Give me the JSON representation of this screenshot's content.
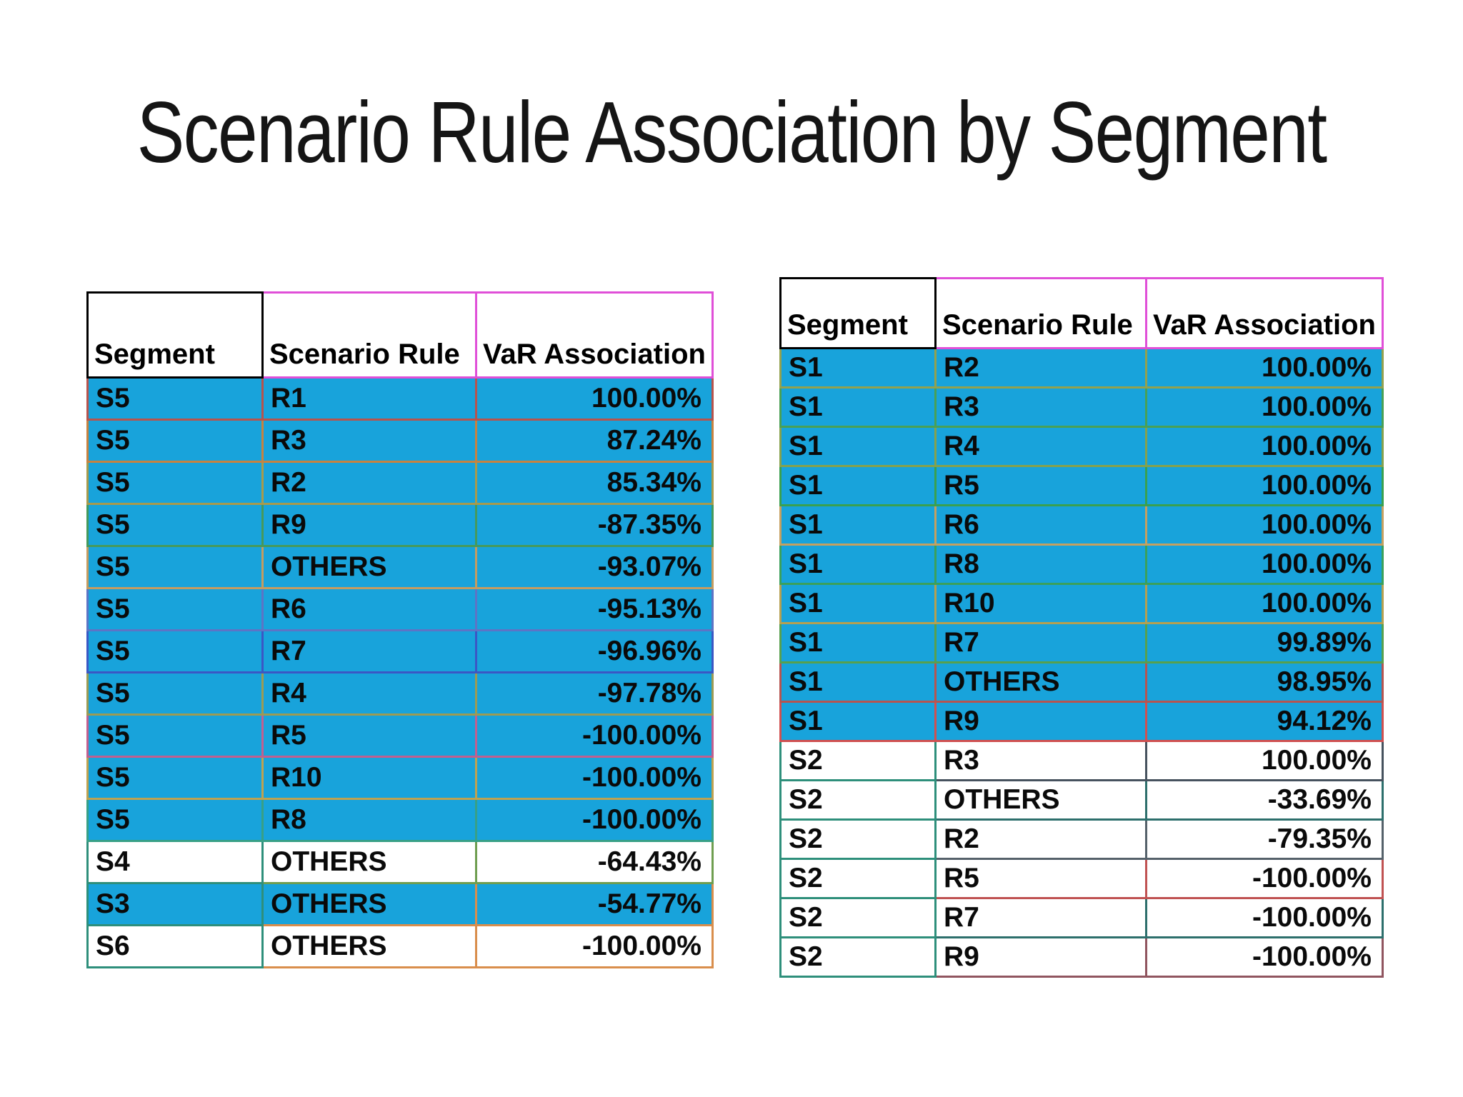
{
  "title": "Scenario Rule Association by Segment",
  "colors": {
    "highlight_fill": "#18A3DB",
    "row_fill": "#FFFFFF",
    "header_border_first": "#000000",
    "header_border_rest": "#E04FD8",
    "segment_alt_border": "#2E8F7B",
    "text": "#111111"
  },
  "tables": [
    {
      "name": "scenario-rule-table-left",
      "columns": [
        "Segment",
        "Scenario Rule",
        "VaR Association"
      ],
      "rows": [
        {
          "segment": "S5",
          "rule": "R1",
          "value": "100.00%",
          "highlight": true,
          "bc": "#B8534C"
        },
        {
          "segment": "S5",
          "rule": "R3",
          "value": "87.24%",
          "highlight": true,
          "bc": "#C8823F"
        },
        {
          "segment": "S5",
          "rule": "R2",
          "value": "85.34%",
          "highlight": true,
          "bc": "#A89A4C"
        },
        {
          "segment": "S5",
          "rule": "R9",
          "value": "-87.35%",
          "highlight": true,
          "bc": "#46995B"
        },
        {
          "segment": "S5",
          "rule": "OTHERS",
          "value": "-93.07%",
          "highlight": true,
          "bc": "#C59C60"
        },
        {
          "segment": "S5",
          "rule": "R6",
          "value": "-95.13%",
          "highlight": true,
          "bc": "#5D74C5"
        },
        {
          "segment": "S5",
          "rule": "R7",
          "value": "-96.96%",
          "highlight": true,
          "bc": "#3B57C4"
        },
        {
          "segment": "S5",
          "rule": "R4",
          "value": "-97.78%",
          "highlight": true,
          "bc": "#9C9B54"
        },
        {
          "segment": "S5",
          "rule": "R5",
          "value": "-100.00%",
          "highlight": true,
          "bc": "#C25F8F"
        },
        {
          "segment": "S5",
          "rule": "R10",
          "value": "-100.00%",
          "highlight": true,
          "bc": "#BFA250"
        },
        {
          "segment": "S5",
          "rule": "R8",
          "value": "-100.00%",
          "highlight": true,
          "bc": "#38A086"
        },
        {
          "segment": "S4",
          "rule": "OTHERS",
          "value": "-64.43%",
          "highlight": false,
          "bc": "#6F9E50",
          "bc0": "#2E8F7B"
        },
        {
          "segment": "S3",
          "rule": "OTHERS",
          "value": "-54.77%",
          "highlight": true,
          "bc": "#D98E4C",
          "bc0": "#2E8F7B"
        },
        {
          "segment": "S6",
          "rule": "OTHERS",
          "value": "-100.00%",
          "highlight": false,
          "bc": "#D98E4C",
          "bc0": "#2E8F7B"
        }
      ]
    },
    {
      "name": "scenario-rule-table-right",
      "columns": [
        "Segment",
        "Scenario Rule",
        "VaR Association"
      ],
      "rows": [
        {
          "segment": "S1",
          "rule": "R2",
          "value": "100.00%",
          "highlight": true,
          "bc": "#93A14E"
        },
        {
          "segment": "S1",
          "rule": "R3",
          "value": "100.00%",
          "highlight": true,
          "bc": "#49A055"
        },
        {
          "segment": "S1",
          "rule": "R4",
          "value": "100.00%",
          "highlight": true,
          "bc": "#85A14D"
        },
        {
          "segment": "S1",
          "rule": "R5",
          "value": "100.00%",
          "highlight": true,
          "bc": "#3AA04F"
        },
        {
          "segment": "S1",
          "rule": "R6",
          "value": "100.00%",
          "highlight": true,
          "bc": "#C5A060"
        },
        {
          "segment": "S1",
          "rule": "R8",
          "value": "100.00%",
          "highlight": true,
          "bc": "#3BA05B"
        },
        {
          "segment": "S1",
          "rule": "R10",
          "value": "100.00%",
          "highlight": true,
          "bc": "#B5A050"
        },
        {
          "segment": "S1",
          "rule": "R7",
          "value": "99.89%",
          "highlight": true,
          "bc": "#57A04E"
        },
        {
          "segment": "S1",
          "rule": "OTHERS",
          "value": "98.95%",
          "highlight": true,
          "bc": "#B65450"
        },
        {
          "segment": "S1",
          "rule": "R9",
          "value": "94.12%",
          "highlight": true,
          "bc": "#D05050"
        },
        {
          "segment": "S2",
          "rule": "R3",
          "value": "100.00%",
          "highlight": false,
          "bc": "#46525E",
          "bc0": "#2E8F7B"
        },
        {
          "segment": "S2",
          "rule": "OTHERS",
          "value": "-33.69%",
          "highlight": false,
          "bc": "#2D6F6C",
          "bc0": "#2E8F7B"
        },
        {
          "segment": "S2",
          "rule": "R2",
          "value": "-79.35%",
          "highlight": false,
          "bc": "#55616A",
          "bc0": "#2E8F7B"
        },
        {
          "segment": "S2",
          "rule": "R5",
          "value": "-100.00%",
          "highlight": false,
          "bc": "#C05252",
          "bc0": "#2E8F7B"
        },
        {
          "segment": "S2",
          "rule": "R7",
          "value": "-100.00%",
          "highlight": false,
          "bc": "#2D6F6C",
          "bc0": "#2E8F7B"
        },
        {
          "segment": "S2",
          "rule": "R9",
          "value": "-100.00%",
          "highlight": false,
          "bc": "#90555F",
          "bc0": "#2E8F7B"
        }
      ]
    }
  ]
}
